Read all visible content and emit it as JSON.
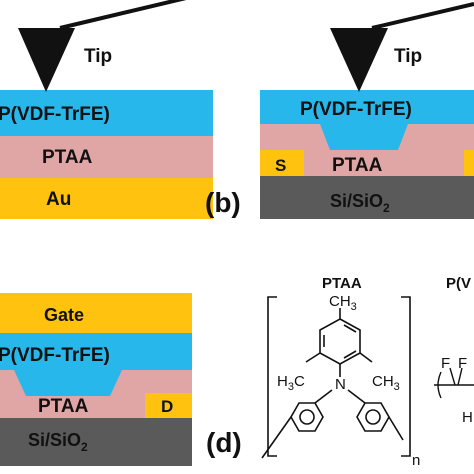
{
  "colors": {
    "ferroelectric": "#28b7ea",
    "semiconductor": "#e0a6a6",
    "metal": "#ffc20e",
    "substrate": "#5a5a5a",
    "outline": "#111111",
    "tip": "#111111"
  },
  "panel_a": {
    "tip_label": "Tip",
    "layer_top": "P(VDF-TrFE)",
    "layer_mid": "PTAA",
    "layer_bottom": "Au"
  },
  "panel_b": {
    "letter": "(b)",
    "tip_label": "Tip",
    "layer_top": "P(VDF-TrFE)",
    "layer_mid": "PTAA",
    "electrode_left": "S",
    "substrate": "Si/SiO",
    "substrate_sub": "2"
  },
  "panel_c": {
    "layer_gate": "Gate",
    "layer_top": "P(VDF-TrFE)",
    "layer_mid": "PTAA",
    "electrode_right": "D",
    "substrate": "Si/SiO",
    "substrate_sub": "2"
  },
  "panel_d": {
    "letter": "(d)",
    "title_ptaa": "PTAA",
    "title_pvdf": "P(V",
    "ch3_top": "CH",
    "ch3_top_sub": "3",
    "h3c_left": "H",
    "h3c_left_sub": "3",
    "h3c_left_c": "C",
    "ch3_right": "CH",
    "ch3_right_sub": "3",
    "nitrogen": "N",
    "repeat_n": "n",
    "fluorine_1": "F",
    "fluorine_2": "F",
    "hydrogen": "H"
  }
}
